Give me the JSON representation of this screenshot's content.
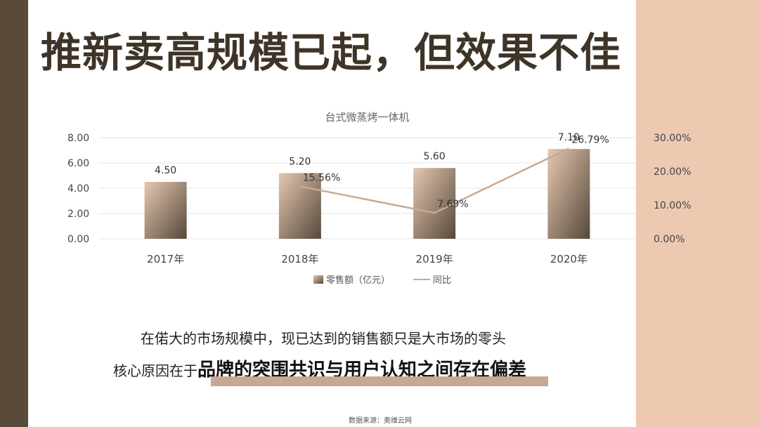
{
  "slide": {
    "title": "推新卖高规模已起，但效果不佳",
    "line1": "在偌大的市场规模中，现已达到的销售额只是大市场的零头",
    "line2_prefix": "核心原因在于",
    "line2_emphasis": "品牌的突围共识与用户认知之间存在偏差",
    "source": "数据来源：奥维云网"
  },
  "colors": {
    "left_bar": "#5a4a39",
    "right_panel": "#edc9b2",
    "bar_top": "#e6c8b0",
    "bar_bottom": "#55483a",
    "line": "#c8aa94",
    "underline": "#c8a892"
  },
  "chart_data": {
    "type": "bar+line",
    "title": "台式微蒸烤一体机",
    "categories": [
      "2017年",
      "2018年",
      "2019年",
      "2020年"
    ],
    "series": [
      {
        "name": "零售额（亿元）",
        "type": "bar",
        "axis": "left",
        "values": [
          4.5,
          5.2,
          5.6,
          7.1
        ],
        "labels": [
          "4.50",
          "5.20",
          "5.60",
          "7.10"
        ]
      },
      {
        "name": "同比",
        "type": "line",
        "axis": "right",
        "values": [
          null,
          15.56,
          7.69,
          26.79
        ],
        "labels": [
          "",
          "15.56%",
          "7.69%",
          "26.79%"
        ]
      }
    ],
    "y_left": {
      "ticks": [
        0,
        2,
        4,
        6,
        8
      ],
      "tick_labels": [
        "0.00",
        "2.00",
        "4.00",
        "6.00",
        "8.00"
      ],
      "range": [
        0,
        8
      ]
    },
    "y_right": {
      "ticks": [
        0,
        10,
        20,
        30
      ],
      "tick_labels": [
        "0.00%",
        "10.00%",
        "20.00%",
        "30.00%"
      ],
      "range": [
        0,
        30
      ]
    },
    "grid": true,
    "legend_position": "bottom"
  }
}
